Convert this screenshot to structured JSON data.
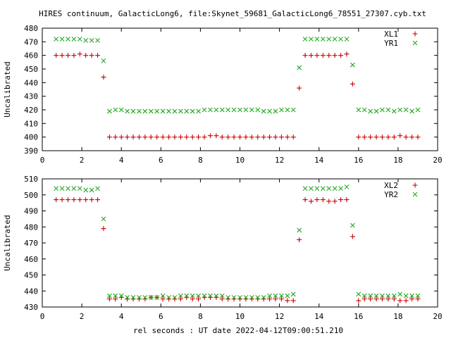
{
  "title": "HIRES continuum, GalacticLong6, file:Skynet_59681_GalacticLong6_78551_27307.cyb.txt",
  "xlabel": "rel seconds : UT date 2022-04-12T09:00:51.210",
  "colors": {
    "XL": "#cc0000",
    "YR": "#22aa22"
  },
  "chart_data": [
    {
      "type": "scatter",
      "ylabel": "Uncalibrated",
      "xlim": [
        0,
        20
      ],
      "ylim": [
        390,
        480
      ],
      "x_ticks": [
        0,
        2,
        4,
        6,
        8,
        10,
        12,
        14,
        16,
        18,
        20
      ],
      "y_ticks": [
        390,
        400,
        410,
        420,
        430,
        440,
        450,
        460,
        470,
        480
      ],
      "legend_position": "top-right",
      "grid": false,
      "series": [
        {
          "name": "XL1",
          "marker": "plus",
          "color": "#cc0000",
          "x": [
            0.7,
            1.0,
            1.3,
            1.6,
            1.9,
            2.2,
            2.5,
            2.8,
            3.1,
            3.4,
            3.7,
            4.0,
            4.3,
            4.6,
            4.9,
            5.2,
            5.5,
            5.8,
            6.1,
            6.4,
            6.7,
            7.0,
            7.3,
            7.6,
            7.9,
            8.2,
            8.5,
            8.8,
            9.1,
            9.4,
            9.7,
            10.0,
            10.3,
            10.6,
            10.9,
            11.2,
            11.5,
            11.8,
            12.1,
            12.4,
            12.7,
            13.0,
            13.3,
            13.6,
            13.9,
            14.2,
            14.5,
            14.8,
            15.1,
            15.4,
            15.7,
            16.0,
            16.3,
            16.6,
            16.9,
            17.2,
            17.5,
            17.8,
            18.1,
            18.4,
            18.7,
            19.0
          ],
          "y": [
            460,
            460,
            460,
            460,
            461,
            460,
            460,
            460,
            444,
            400,
            400,
            400,
            400,
            400,
            400,
            400,
            400,
            400,
            400,
            400,
            400,
            400,
            400,
            400,
            400,
            400,
            401,
            401,
            400,
            400,
            400,
            400,
            400,
            400,
            400,
            400,
            400,
            400,
            400,
            400,
            400,
            436,
            460,
            460,
            460,
            460,
            460,
            460,
            460,
            461,
            439,
            400,
            400,
            400,
            400,
            400,
            400,
            400,
            401,
            400,
            400,
            400
          ]
        },
        {
          "name": "YR1",
          "marker": "cross",
          "color": "#22aa22",
          "x": [
            0.7,
            1.0,
            1.3,
            1.6,
            1.9,
            2.2,
            2.5,
            2.8,
            3.1,
            3.4,
            3.7,
            4.0,
            4.3,
            4.6,
            4.9,
            5.2,
            5.5,
            5.8,
            6.1,
            6.4,
            6.7,
            7.0,
            7.3,
            7.6,
            7.9,
            8.2,
            8.5,
            8.8,
            9.1,
            9.4,
            9.7,
            10.0,
            10.3,
            10.6,
            10.9,
            11.2,
            11.5,
            11.8,
            12.1,
            12.4,
            12.7,
            13.0,
            13.3,
            13.6,
            13.9,
            14.2,
            14.5,
            14.8,
            15.1,
            15.4,
            15.7,
            16.0,
            16.3,
            16.6,
            16.9,
            17.2,
            17.5,
            17.8,
            18.1,
            18.4,
            18.7,
            19.0
          ],
          "y": [
            472,
            472,
            472,
            472,
            472,
            471,
            471,
            471,
            456,
            419,
            420,
            420,
            419,
            419,
            419,
            419,
            419,
            419,
            419,
            419,
            419,
            419,
            419,
            419,
            419,
            420,
            420,
            420,
            420,
            420,
            420,
            420,
            420,
            420,
            420,
            419,
            419,
            419,
            420,
            420,
            420,
            451,
            472,
            472,
            472,
            472,
            472,
            472,
            472,
            472,
            453,
            420,
            420,
            419,
            419,
            420,
            420,
            419,
            420,
            420,
            419,
            420
          ]
        }
      ]
    },
    {
      "type": "scatter",
      "ylabel": "Uncalibrated",
      "xlim": [
        0,
        20
      ],
      "ylim": [
        430,
        510
      ],
      "x_ticks": [
        0,
        2,
        4,
        6,
        8,
        10,
        12,
        14,
        16,
        18,
        20
      ],
      "y_ticks": [
        430,
        440,
        450,
        460,
        470,
        480,
        490,
        500,
        510
      ],
      "legend_position": "top-right",
      "grid": false,
      "series": [
        {
          "name": "XL2",
          "marker": "plus",
          "color": "#cc0000",
          "x": [
            0.7,
            1.0,
            1.3,
            1.6,
            1.9,
            2.2,
            2.5,
            2.8,
            3.1,
            3.4,
            3.7,
            4.0,
            4.3,
            4.6,
            4.9,
            5.2,
            5.5,
            5.8,
            6.1,
            6.4,
            6.7,
            7.0,
            7.3,
            7.6,
            7.9,
            8.2,
            8.5,
            8.8,
            9.1,
            9.4,
            9.7,
            10.0,
            10.3,
            10.6,
            10.9,
            11.2,
            11.5,
            11.8,
            12.1,
            12.4,
            12.7,
            13.0,
            13.3,
            13.6,
            13.9,
            14.2,
            14.5,
            14.8,
            15.1,
            15.4,
            15.7,
            16.0,
            16.3,
            16.6,
            16.9,
            17.2,
            17.5,
            17.8,
            18.1,
            18.4,
            18.7,
            19.0
          ],
          "y": [
            497,
            497,
            497,
            497,
            497,
            497,
            497,
            497,
            479,
            435,
            435,
            436,
            435,
            435,
            435,
            435,
            436,
            436,
            435,
            435,
            435,
            435,
            436,
            435,
            435,
            436,
            436,
            436,
            435,
            435,
            435,
            435,
            435,
            435,
            435,
            435,
            435,
            435,
            435,
            434,
            434,
            472,
            497,
            496,
            497,
            497,
            496,
            496,
            497,
            497,
            474,
            434,
            435,
            435,
            435,
            435,
            435,
            435,
            434,
            434,
            435,
            435
          ]
        },
        {
          "name": "YR2",
          "marker": "cross",
          "color": "#22aa22",
          "x": [
            0.7,
            1.0,
            1.3,
            1.6,
            1.9,
            2.2,
            2.5,
            2.8,
            3.1,
            3.4,
            3.7,
            4.0,
            4.3,
            4.6,
            4.9,
            5.2,
            5.5,
            5.8,
            6.1,
            6.4,
            6.7,
            7.0,
            7.3,
            7.6,
            7.9,
            8.2,
            8.5,
            8.8,
            9.1,
            9.4,
            9.7,
            10.0,
            10.3,
            10.6,
            10.9,
            11.2,
            11.5,
            11.8,
            12.1,
            12.4,
            12.7,
            13.0,
            13.3,
            13.6,
            13.9,
            14.2,
            14.5,
            14.8,
            15.1,
            15.4,
            15.7,
            16.0,
            16.3,
            16.6,
            16.9,
            17.2,
            17.5,
            17.8,
            18.1,
            18.4,
            18.7,
            19.0
          ],
          "y": [
            504,
            504,
            504,
            504,
            504,
            503,
            503,
            504,
            485,
            437,
            437,
            437,
            436,
            436,
            436,
            436,
            436,
            436,
            437,
            436,
            436,
            437,
            437,
            437,
            437,
            437,
            437,
            437,
            437,
            436,
            436,
            436,
            436,
            436,
            436,
            436,
            437,
            437,
            437,
            437,
            438,
            478,
            504,
            504,
            504,
            504,
            504,
            504,
            504,
            505,
            481,
            438,
            437,
            437,
            437,
            437,
            437,
            437,
            438,
            437,
            437,
            437
          ]
        }
      ]
    }
  ]
}
